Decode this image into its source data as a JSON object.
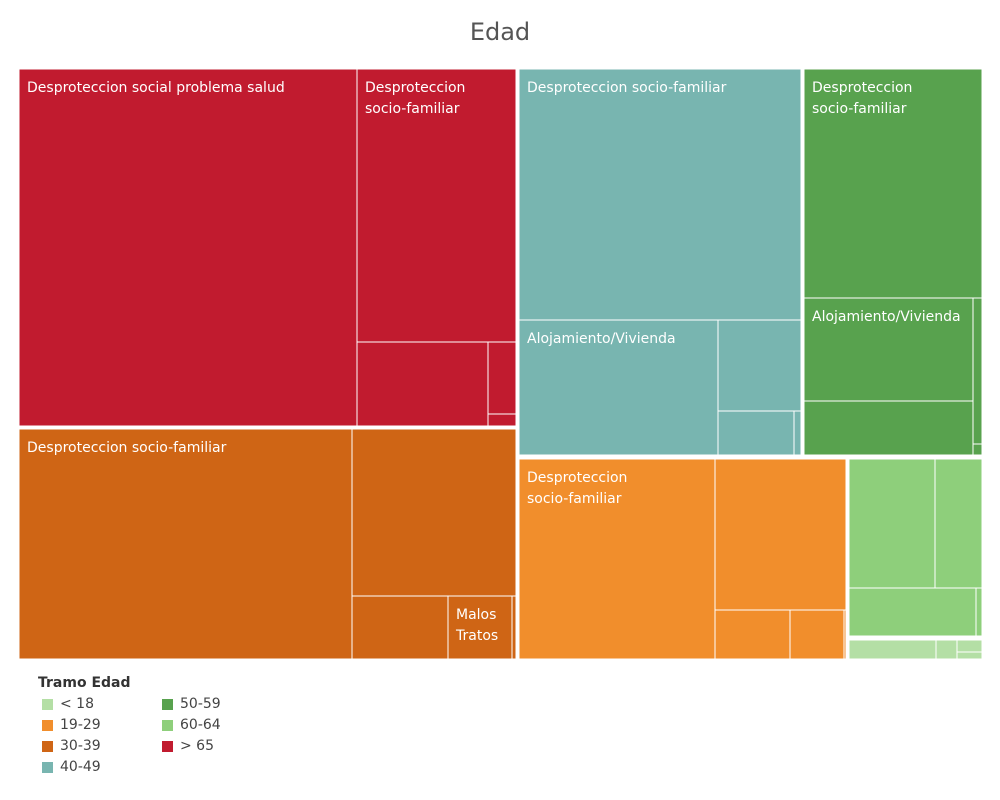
{
  "chart_data": {
    "type": "treemap",
    "title": "Edad",
    "legend": {
      "title": "Tramo Edad",
      "items": [
        {
          "label": "< 18",
          "color": "#b4dfa5"
        },
        {
          "label": "19-29",
          "color": "#f18e2c"
        },
        {
          "label": "30-39",
          "color": "#cf6515"
        },
        {
          "label": "40-49",
          "color": "#78b5b0"
        },
        {
          "label": "50-59",
          "color": "#58a24e"
        },
        {
          "label": "60-64",
          "color": "#8ecf7b"
        },
        {
          "label": "> 65",
          "color": "#c11b2f"
        }
      ]
    },
    "groups": [
      {
        "tramo": "> 65",
        "color": "#c11b2f",
        "cells": [
          {
            "label": "Desproteccion social problema salud"
          },
          {
            "label": "Desproteccion socio-familiar"
          },
          {
            "label": ""
          },
          {
            "label": ""
          },
          {
            "label": ""
          }
        ]
      },
      {
        "tramo": "30-39",
        "color": "#cf6515",
        "cells": [
          {
            "label": "Desproteccion socio-familiar"
          },
          {
            "label": ""
          },
          {
            "label": ""
          },
          {
            "label": "Malos Tratos"
          },
          {
            "label": ""
          }
        ]
      },
      {
        "tramo": "40-49",
        "color": "#78b5b0",
        "cells": [
          {
            "label": "Desproteccion socio-familiar"
          },
          {
            "label": "Alojamiento/Vivienda"
          },
          {
            "label": ""
          },
          {
            "label": ""
          },
          {
            "label": ""
          },
          {
            "label": ""
          }
        ]
      },
      {
        "tramo": "50-59",
        "color": "#58a24e",
        "cells": [
          {
            "label": "Desproteccion socio-familiar"
          },
          {
            "label": "Alojamiento/Vivienda"
          },
          {
            "label": ""
          },
          {
            "label": ""
          },
          {
            "label": ""
          }
        ]
      },
      {
        "tramo": "19-29",
        "color": "#f18e2c",
        "cells": [
          {
            "label": "Desproteccion socio-familiar"
          },
          {
            "label": ""
          },
          {
            "label": ""
          },
          {
            "label": ""
          },
          {
            "label": ""
          }
        ]
      },
      {
        "tramo": "60-64",
        "color": "#8ecf7b",
        "cells": [
          {
            "label": ""
          },
          {
            "label": ""
          },
          {
            "label": ""
          },
          {
            "label": ""
          }
        ]
      },
      {
        "tramo": "< 18",
        "color": "#b4dfa5",
        "cells": [
          {
            "label": ""
          },
          {
            "label": ""
          },
          {
            "label": ""
          },
          {
            "label": ""
          }
        ]
      }
    ]
  }
}
